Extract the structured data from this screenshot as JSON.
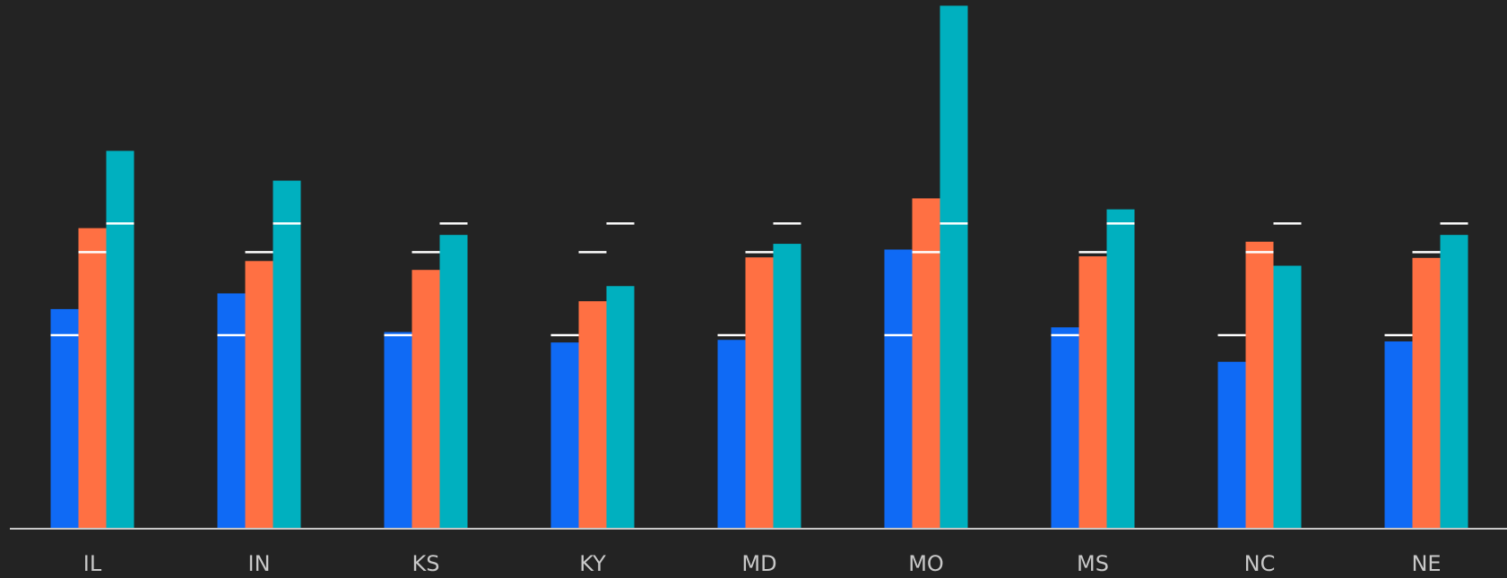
{
  "chart_data": {
    "type": "bar",
    "categories": [
      "IL",
      "IN",
      "KS",
      "KY",
      "MD",
      "MO",
      "MS",
      "NC",
      "NE"
    ],
    "series": [
      {
        "color": "#0f6af5",
        "values": [
          41.9,
          44.9,
          37.5,
          35.5,
          36.0,
          53.3,
          38.4,
          31.8,
          35.7
        ],
        "target": 36.9
      },
      {
        "color": "#ff7043",
        "values": [
          57.4,
          51.1,
          49.4,
          43.4,
          51.8,
          63.1,
          52.0,
          54.8,
          51.7
        ],
        "target": 52.8
      },
      {
        "color": "#00b0bf",
        "values": [
          72.2,
          66.5,
          56.1,
          46.3,
          54.4,
          100,
          61.0,
          50.2,
          56.1
        ],
        "target": 58.3
      }
    ],
    "ylim": [
      0,
      100
    ]
  }
}
